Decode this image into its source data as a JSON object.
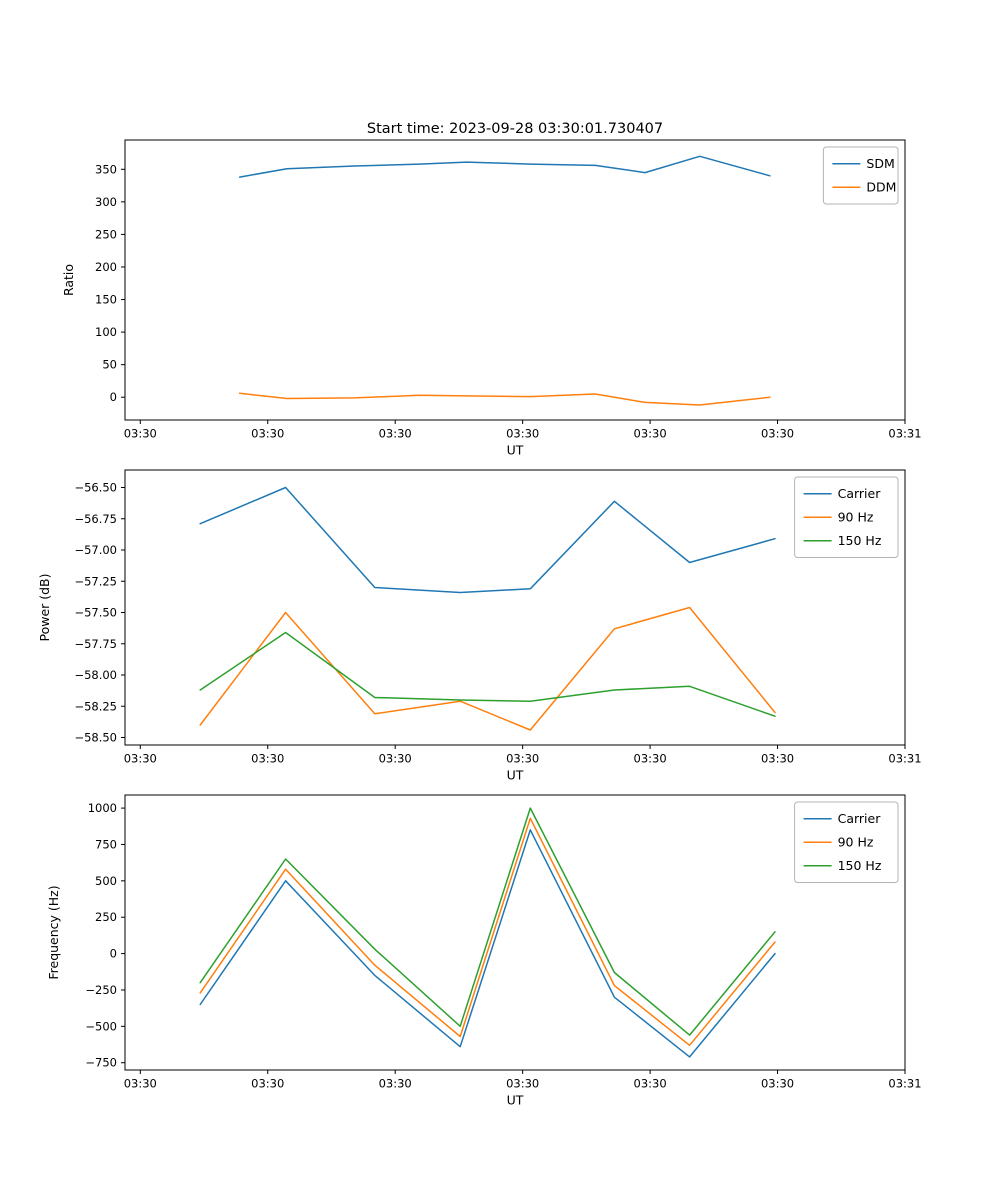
{
  "figure": {
    "title": "Start time: 2023-09-28 03:30:01.730407"
  },
  "chart_data": [
    {
      "type": "line",
      "title": "Start time: 2023-09-28 03:30:01.730407",
      "xlabel": "UT",
      "ylabel": "Ratio",
      "grid": false,
      "legend_position": "upper right",
      "xlim": [
        -1.2,
        60
      ],
      "ylim": [
        -35,
        395
      ],
      "x_ticks": [
        {
          "value": 0,
          "label": "03:30"
        },
        {
          "value": 10,
          "label": "03:30"
        },
        {
          "value": 20,
          "label": "03:30"
        },
        {
          "value": 30,
          "label": "03:30"
        },
        {
          "value": 40,
          "label": "03:30"
        },
        {
          "value": 50,
          "label": "03:30"
        },
        {
          "value": 60,
          "label": "03:31"
        }
      ],
      "y_ticks": [
        {
          "value": 0,
          "label": "0"
        },
        {
          "value": 50,
          "label": "50"
        },
        {
          "value": 100,
          "label": "100"
        },
        {
          "value": 150,
          "label": "150"
        },
        {
          "value": 200,
          "label": "200"
        },
        {
          "value": 250,
          "label": "250"
        },
        {
          "value": 300,
          "label": "300"
        },
        {
          "value": 350,
          "label": "350"
        }
      ],
      "x": [
        7.8,
        11.5,
        16.8,
        21.9,
        25.6,
        30.6,
        35.7,
        39.6,
        43.9,
        49.4
      ],
      "series": [
        {
          "name": "SDM",
          "color": "#1f77b4",
          "values": [
            338,
            351,
            355,
            358,
            361,
            358,
            356,
            345,
            370,
            340
          ]
        },
        {
          "name": "DDM",
          "color": "#ff7f0e",
          "values": [
            6,
            -2,
            -1,
            3,
            2,
            1,
            5,
            -8,
            -12,
            0
          ]
        }
      ]
    },
    {
      "type": "line",
      "title": "",
      "xlabel": "UT",
      "ylabel": "Power (dB)",
      "grid": false,
      "legend_position": "upper right",
      "xlim": [
        -1.2,
        60
      ],
      "ylim": [
        -58.56,
        -56.36
      ],
      "x_ticks": [
        {
          "value": 0,
          "label": "03:30"
        },
        {
          "value": 10,
          "label": "03:30"
        },
        {
          "value": 20,
          "label": "03:30"
        },
        {
          "value": 30,
          "label": "03:30"
        },
        {
          "value": 40,
          "label": "03:30"
        },
        {
          "value": 50,
          "label": "03:30"
        },
        {
          "value": 60,
          "label": "03:31"
        }
      ],
      "y_ticks": [
        {
          "value": -58.5,
          "label": "−58.50"
        },
        {
          "value": -58.25,
          "label": "−58.25"
        },
        {
          "value": -58.0,
          "label": "−58.00"
        },
        {
          "value": -57.75,
          "label": "−57.75"
        },
        {
          "value": -57.5,
          "label": "−57.50"
        },
        {
          "value": -57.25,
          "label": "−57.25"
        },
        {
          "value": -57.0,
          "label": "−57.00"
        },
        {
          "value": -56.75,
          "label": "−56.75"
        },
        {
          "value": -56.5,
          "label": "−56.50"
        }
      ],
      "x": [
        4.7,
        11.4,
        18.4,
        25.1,
        30.6,
        37.2,
        43.1,
        49.8
      ],
      "series": [
        {
          "name": "Carrier",
          "color": "#1f77b4",
          "values": [
            -56.79,
            -56.5,
            -57.3,
            -57.34,
            -57.31,
            -56.61,
            -57.1,
            -56.91
          ]
        },
        {
          "name": "90 Hz",
          "color": "#ff7f0e",
          "values": [
            -58.4,
            -57.5,
            -58.31,
            -58.21,
            -58.44,
            -57.63,
            -57.46,
            -58.3
          ]
        },
        {
          "name": "150 Hz",
          "color": "#2ca02c",
          "values": [
            -58.12,
            -57.66,
            -58.18,
            -58.2,
            -58.21,
            -58.12,
            -58.09,
            -58.33
          ]
        }
      ]
    },
    {
      "type": "line",
      "title": "",
      "xlabel": "UT",
      "ylabel": "Frequency (Hz)",
      "grid": false,
      "legend_position": "upper right",
      "xlim": [
        -1.2,
        60
      ],
      "ylim": [
        -800,
        1090
      ],
      "x_ticks": [
        {
          "value": 0,
          "label": "03:30"
        },
        {
          "value": 10,
          "label": "03:30"
        },
        {
          "value": 20,
          "label": "03:30"
        },
        {
          "value": 30,
          "label": "03:30"
        },
        {
          "value": 40,
          "label": "03:30"
        },
        {
          "value": 50,
          "label": "03:30"
        },
        {
          "value": 60,
          "label": "03:31"
        }
      ],
      "y_ticks": [
        {
          "value": -750,
          "label": "−750"
        },
        {
          "value": -500,
          "label": "−500"
        },
        {
          "value": -250,
          "label": "−250"
        },
        {
          "value": 0,
          "label": "0"
        },
        {
          "value": 250,
          "label": "250"
        },
        {
          "value": 500,
          "label": "500"
        },
        {
          "value": 750,
          "label": "750"
        },
        {
          "value": 1000,
          "label": "1000"
        }
      ],
      "x": [
        4.7,
        11.4,
        18.4,
        25.1,
        30.6,
        37.2,
        43.1,
        49.8
      ],
      "series": [
        {
          "name": "Carrier",
          "color": "#1f77b4",
          "values": [
            -350,
            500,
            -150,
            -640,
            850,
            -300,
            -710,
            0
          ]
        },
        {
          "name": "90 Hz",
          "color": "#ff7f0e",
          "values": [
            -270,
            580,
            -80,
            -570,
            930,
            -220,
            -630,
            80
          ]
        },
        {
          "name": "150 Hz",
          "color": "#2ca02c",
          "values": [
            -200,
            650,
            30,
            -500,
            1000,
            -130,
            -560,
            150
          ]
        }
      ]
    }
  ]
}
